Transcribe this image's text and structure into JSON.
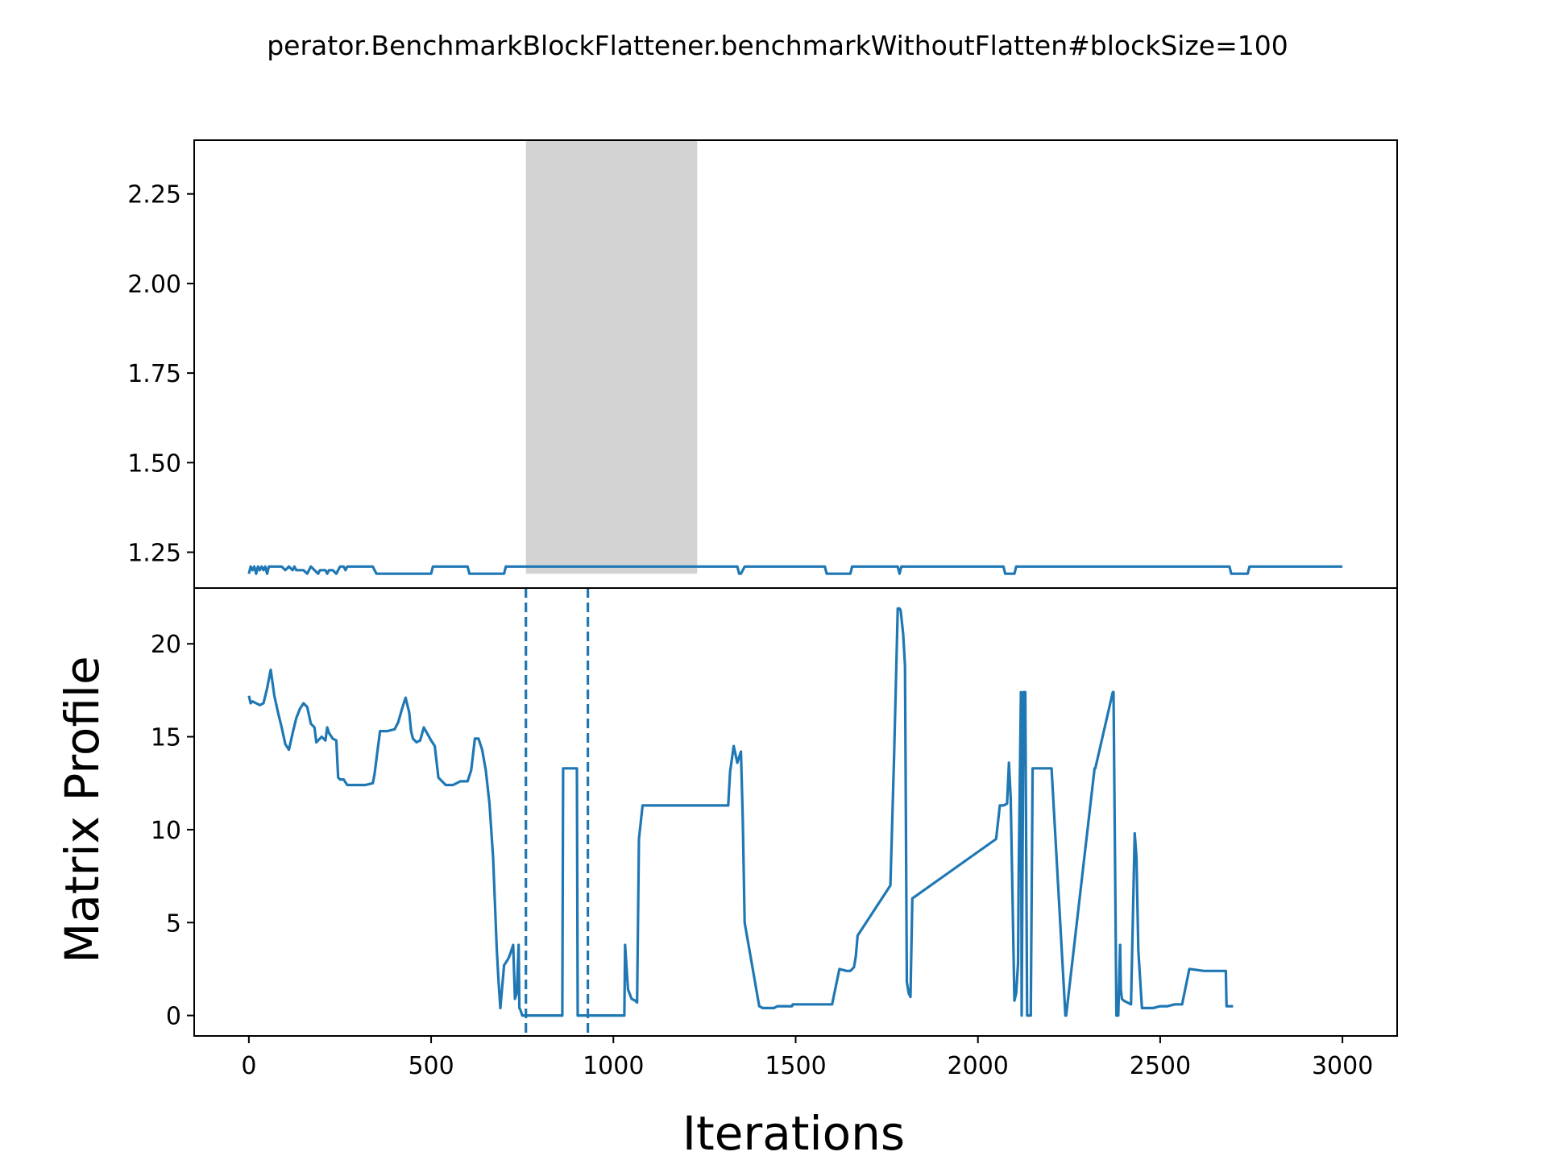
{
  "chart_data": [
    {
      "panel": "top",
      "type": "line",
      "title": "perator.BenchmarkBlockFlattener.benchmarkWithoutFlatten#blockSize=100",
      "xlabel": "",
      "ylabel": "",
      "xlim": [
        -150,
        3150
      ],
      "ylim": [
        1.15,
        2.4
      ],
      "yticks": [
        "2.25",
        "2.00",
        "1.75",
        "1.50",
        "1.25"
      ],
      "ytick_values": [
        2.25,
        2.0,
        1.75,
        1.5,
        1.25
      ],
      "highlight_region": {
        "x": [
          760,
          1230
        ],
        "y": [
          1.19,
          2.4
        ],
        "color": "#d3d3d3"
      },
      "line_color": "#1f77b4",
      "series": [
        {
          "x": [
            0,
            5,
            10,
            15,
            20,
            25,
            30,
            35,
            40,
            45,
            50,
            55,
            60,
            70,
            80,
            90,
            100,
            110,
            120,
            125,
            130,
            140,
            150,
            160,
            165,
            170,
            180,
            190,
            195,
            200,
            210,
            215,
            220,
            230,
            240,
            245,
            250,
            260,
            265,
            270,
            340,
            345,
            350,
            410,
            420,
            500,
            505,
            600,
            605,
            700,
            705,
            1300,
            1305,
            1320,
            1330,
            1340,
            1345,
            1350,
            1360,
            1580,
            1585,
            1590,
            1650,
            1655,
            1780,
            1785,
            1790,
            2070,
            2075,
            2100,
            2105,
            2690,
            2695,
            2740,
            2745,
            3000
          ],
          "y": [
            1.19,
            1.21,
            1.2,
            1.21,
            1.19,
            1.21,
            1.2,
            1.21,
            1.2,
            1.21,
            1.19,
            1.21,
            1.21,
            1.21,
            1.21,
            1.21,
            1.2,
            1.21,
            1.2,
            1.21,
            1.2,
            1.2,
            1.2,
            1.19,
            1.2,
            1.21,
            1.2,
            1.19,
            1.2,
            1.2,
            1.2,
            1.19,
            1.2,
            1.2,
            1.19,
            1.2,
            1.21,
            1.21,
            1.2,
            1.21,
            1.21,
            1.2,
            1.19,
            1.19,
            1.19,
            1.19,
            1.21,
            1.21,
            1.19,
            1.19,
            1.21,
            1.21,
            1.21,
            1.21,
            1.21,
            1.21,
            1.19,
            1.19,
            1.21,
            1.21,
            1.19,
            1.19,
            1.19,
            1.21,
            1.21,
            1.19,
            1.21,
            1.21,
            1.19,
            1.19,
            1.21,
            1.21,
            1.19,
            1.19,
            1.21,
            1.21
          ]
        }
      ]
    },
    {
      "panel": "bottom",
      "type": "line",
      "xlabel": "Iterations",
      "ylabel": "Matrix Profile",
      "xlim": [
        -150,
        3150
      ],
      "ylim": [
        -1.1,
        23
      ],
      "xticks": [
        "0",
        "500",
        "1000",
        "1500",
        "2000",
        "2500",
        "3000"
      ],
      "xtick_values": [
        0,
        500,
        1000,
        1500,
        2000,
        2500,
        3000
      ],
      "yticks": [
        "20",
        "15",
        "10",
        "5",
        "0"
      ],
      "ytick_values": [
        20,
        15,
        10,
        5,
        0
      ],
      "vlines": [
        760,
        930
      ],
      "line_color": "#1f77b4",
      "series": [
        {
          "x": [
            0,
            5,
            10,
            20,
            30,
            40,
            50,
            55,
            60,
            70,
            80,
            90,
            100,
            110,
            120,
            130,
            140,
            150,
            160,
            170,
            180,
            185,
            190,
            200,
            210,
            215,
            220,
            230,
            240,
            245,
            250,
            260,
            270,
            300,
            320,
            340,
            345,
            350,
            360,
            380,
            400,
            410,
            420,
            430,
            440,
            445,
            450,
            460,
            470,
            480,
            500,
            510,
            520,
            540,
            550,
            560,
            580,
            590,
            600,
            610,
            620,
            630,
            640,
            650,
            660,
            670,
            675,
            680,
            685,
            690,
            700,
            710,
            715,
            720,
            725,
            730,
            735,
            740,
            742,
            745,
            750,
            860,
            862,
            870,
            900,
            902,
            1030,
            1032,
            1040,
            1050,
            1060,
            1065,
            1070,
            1080,
            1090,
            1100,
            1300,
            1310,
            1315,
            1320,
            1330,
            1340,
            1350,
            1355,
            1360,
            1400,
            1410,
            1440,
            1450,
            1490,
            1492,
            1600,
            1620,
            1640,
            1650,
            1660,
            1665,
            1670,
            1760,
            1770,
            1780,
            1785,
            1788,
            1795,
            1800,
            1805,
            1810,
            1815,
            1820,
            2050,
            2060,
            2065,
            2070,
            2080,
            2085,
            2090,
            2100,
            2105,
            2110,
            2112,
            2118,
            2120,
            2125,
            2130,
            2135,
            2145,
            2150,
            2200,
            2202,
            2240,
            2242,
            2320,
            2322,
            2370,
            2372,
            2380,
            2385,
            2390,
            2392,
            2395,
            2400,
            2410,
            2420,
            2430,
            2435,
            2440,
            2450,
            2460,
            2465,
            2470,
            2480,
            2500,
            2520,
            2540,
            2560,
            2580,
            2582,
            2620,
            2650,
            2680,
            2682,
            2700
          ],
          "y": [
            17.2,
            16.8,
            16.9,
            16.8,
            16.7,
            16.8,
            17.6,
            18.1,
            18.6,
            17.2,
            16.3,
            15.5,
            14.6,
            14.3,
            15.2,
            16.0,
            16.5,
            16.8,
            16.6,
            15.7,
            15.5,
            14.7,
            14.8,
            15.0,
            14.8,
            15.5,
            15.2,
            14.9,
            14.8,
            12.8,
            12.7,
            12.7,
            12.4,
            12.4,
            12.4,
            12.5,
            13.0,
            13.8,
            15.3,
            15.3,
            15.4,
            15.8,
            16.5,
            17.1,
            16.3,
            15.3,
            14.9,
            14.7,
            14.8,
            15.5,
            14.8,
            14.5,
            12.8,
            12.4,
            12.4,
            12.4,
            12.6,
            12.6,
            12.6,
            13.2,
            14.9,
            14.9,
            14.3,
            13.2,
            11.4,
            8.5,
            6.0,
            3.6,
            1.8,
            0.4,
            2.7,
            3.0,
            3.2,
            3.5,
            3.8,
            0.9,
            1.2,
            3.8,
            0.4,
            0.3,
            0.0,
            0.0,
            13.3,
            13.3,
            13.3,
            0.0,
            0.0,
            3.8,
            1.4,
            0.9,
            0.8,
            0.7,
            9.5,
            11.3,
            11.3,
            11.3,
            11.3,
            11.3,
            11.3,
            13.1,
            14.5,
            13.6,
            14.2,
            10.5,
            5.0,
            0.5,
            0.4,
            0.4,
            0.5,
            0.5,
            0.6,
            0.6,
            2.5,
            2.4,
            2.4,
            2.6,
            3.2,
            4.3,
            7.0,
            14.0,
            21.9,
            21.9,
            21.8,
            20.5,
            18.8,
            1.8,
            1.2,
            1.0,
            6.3,
            9.5,
            11.3,
            11.3,
            11.3,
            11.4,
            13.6,
            11.7,
            0.8,
            1.2,
            2.8,
            8.0,
            17.4,
            0.0,
            17.4,
            17.4,
            0.0,
            0.0,
            13.3,
            13.3,
            13.3,
            0.0,
            0.0,
            13.3,
            13.3,
            17.4,
            17.4,
            0.0,
            0.0,
            3.8,
            1.4,
            0.9,
            0.8,
            0.7,
            0.6,
            9.8,
            8.5,
            3.5,
            0.4,
            0.4,
            0.4,
            0.4,
            0.4,
            0.5,
            0.5,
            0.6,
            0.6,
            2.5,
            2.5,
            2.4,
            2.4,
            2.4,
            0.5,
            0.5
          ]
        }
      ]
    }
  ]
}
